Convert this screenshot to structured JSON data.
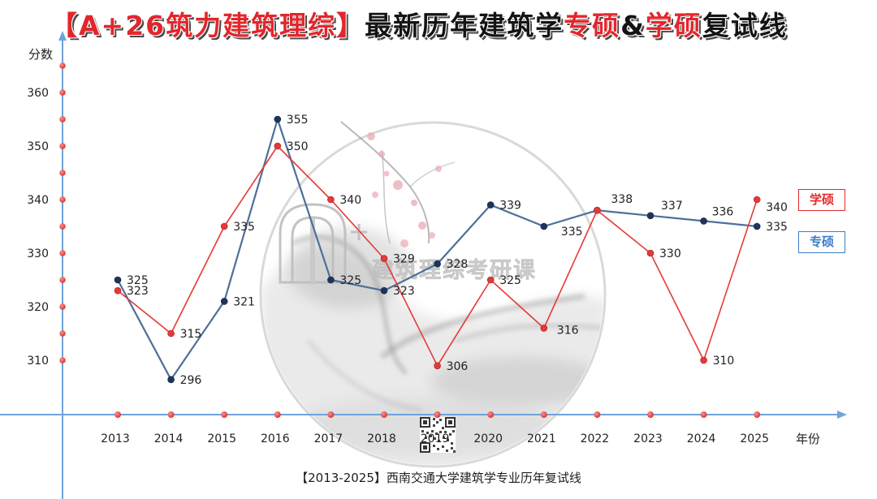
{
  "chart_data": {
    "type": "line",
    "title": [
      {
        "text": "【A+26筑力建筑理综】",
        "color": "#e3262c"
      },
      {
        "text": "最新历年建筑学",
        "color": "#141414"
      },
      {
        "text": "专硕",
        "color": "#e3262c"
      },
      {
        "text": "&",
        "color": "#141414"
      },
      {
        "text": "学硕",
        "color": "#e3262c"
      },
      {
        "text": "复试线",
        "color": "#141414"
      }
    ],
    "caption": "【2013-2025】西南交通大学建筑学专业历年复试线",
    "xlabel": "年份",
    "ylabel": "分数",
    "categories": [
      "2013",
      "2014",
      "2015",
      "2016",
      "2017",
      "2018",
      "2019",
      "2020",
      "2021",
      "2022",
      "2023",
      "2024",
      "2025"
    ],
    "yticks": [
      310,
      320,
      330,
      340,
      350,
      360
    ],
    "series": [
      {
        "name": "学硕",
        "color": "#e53935",
        "marker_color": "#e03a3a",
        "legend_color": "#e02b2b",
        "values": [
          323,
          315,
          335,
          350,
          340,
          329,
          306,
          325,
          316,
          338,
          330,
          310,
          340
        ]
      },
      {
        "name": "专硕",
        "color": "#4e6f98",
        "marker_color": "#1f3558",
        "legend_color": "#3d7cc9",
        "values": [
          325,
          296,
          321,
          355,
          325,
          323,
          328,
          339,
          335,
          338,
          337,
          336,
          335
        ]
      }
    ],
    "legend": "right",
    "grid": false,
    "axis_color": "#6fa3db",
    "tick_marker_color": "#e03a3a"
  },
  "watermark": {
    "text": "建筑理综考研课"
  }
}
